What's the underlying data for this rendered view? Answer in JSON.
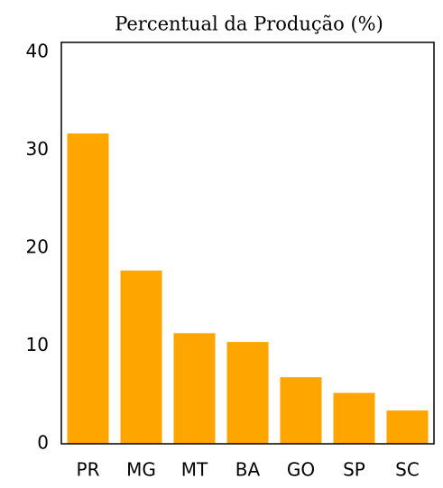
{
  "chart_data": {
    "type": "bar",
    "title": "Percentual da Produção (%)",
    "categories": [
      "PR",
      "MG",
      "MT",
      "BA",
      "GO",
      "SP",
      "SC"
    ],
    "values": [
      31.7,
      17.7,
      11.3,
      10.4,
      6.8,
      5.2,
      3.4
    ],
    "color": "#ffa500",
    "ylim": [
      0,
      41
    ],
    "yticks": [
      0,
      10,
      20,
      30,
      40
    ],
    "grid": false
  }
}
